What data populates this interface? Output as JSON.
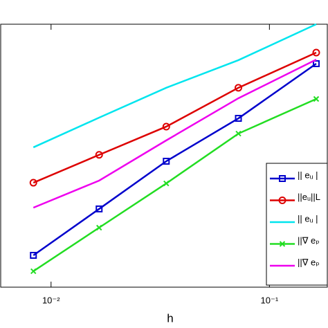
{
  "chart_data": {
    "type": "line",
    "log_x": true,
    "log_y": true,
    "xlabel": "h",
    "x": [
      0.0083,
      0.0166,
      0.0337,
      0.0721,
      0.1638
    ],
    "xlim": [
      0.00588,
      0.1841
    ],
    "ylim": [
      1e-05,
      0.1
    ],
    "xticks": [
      {
        "value": 0.01,
        "label": "10⁻²"
      },
      {
        "value": 0.1,
        "label": "10⁻¹"
      }
    ],
    "series": [
      {
        "name": "|| eᵤ |",
        "color": "#0000cc",
        "marker": "square",
        "values": [
          3.05e-05,
          0.000155,
          0.000824,
          0.0037,
          0.0251
        ]
      },
      {
        "name": "||eᵤ||L",
        "color": "#dd0000",
        "marker": "circle",
        "values": [
          0.000388,
          0.00103,
          0.00277,
          0.0108,
          0.037
        ]
      },
      {
        "name": "|| eᵤ |",
        "color": "#00e5ee",
        "marker": "none",
        "values": [
          0.00134,
          0.00379,
          0.0108,
          0.0284,
          0.1
        ]
      },
      {
        "name": "||∇ eₚ",
        "color": "#22dd22",
        "marker": "x",
        "values": [
          1.75e-05,
          8.04e-05,
          0.000379,
          0.00217,
          0.0073
        ]
      },
      {
        "name": "||∇ eₚ",
        "color": "#ee00ee",
        "marker": "none",
        "values": [
          0.000162,
          0.000418,
          0.00171,
          0.00748,
          0.029
        ]
      }
    ]
  }
}
